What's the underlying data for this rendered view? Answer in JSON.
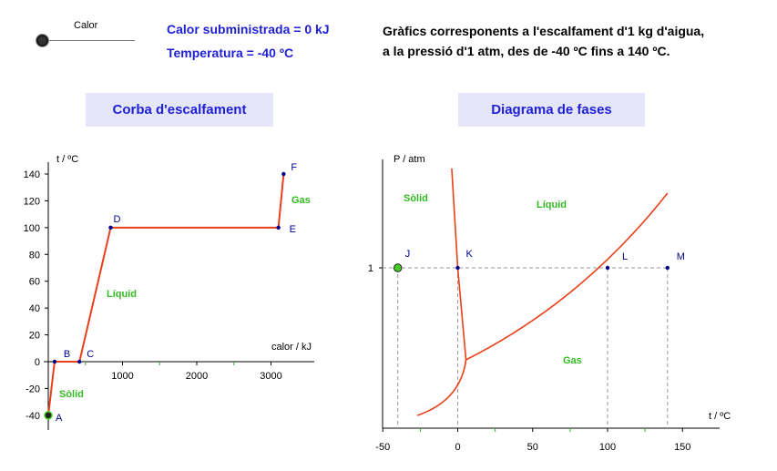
{
  "slider": {
    "label": "Calor"
  },
  "status": {
    "heat_text": "Calor subministrada = 0 kJ",
    "temp_text": "Temperatura = -40 ºC"
  },
  "description": {
    "line1": "Gràfics corresponents a l'escalfament d'1 kg d'aigua,",
    "line2": "a la pressió d'1 atm, des de -40 ºC fins a 140 ºC."
  },
  "buttons": {
    "heating_curve": "Corba d'escalfament",
    "phase_diagram": "Diagrama de fases"
  },
  "colors": {
    "curve": "#e8401a",
    "point": "#00008b",
    "region_label": "#33bb22",
    "title_text": "#1f1fd6",
    "title_bg": "#e6e6fa",
    "dashed": "#999999",
    "current_point": "#44cc22"
  },
  "chart_data": [
    {
      "type": "line",
      "title": "Corba d'escalfament",
      "xlabel": "calor / kJ",
      "ylabel": "t / ºC",
      "xlim": [
        -10,
        3350
      ],
      "ylim": [
        -52,
        148
      ],
      "x_ticks": [
        "1000",
        "2000",
        "3000"
      ],
      "y_ticks": [
        "-40",
        "-20",
        "0",
        "20",
        "40",
        "60",
        "80",
        "100",
        "120",
        "140"
      ],
      "series": [
        {
          "points": [
            {
              "label": "A",
              "x": 0,
              "y": -40
            },
            {
              "label": "B",
              "x": 85,
              "y": 0
            },
            {
              "label": "C",
              "x": 420,
              "y": 0
            },
            {
              "label": "D",
              "x": 840,
              "y": 100
            },
            {
              "label": "E",
              "x": 3100,
              "y": 100
            },
            {
              "label": "F",
              "x": 3170,
              "y": 140
            }
          ]
        }
      ],
      "region_labels": [
        "Sòlid",
        "Líquid",
        "Gas"
      ],
      "current_point": {
        "x": 0,
        "y": -40
      }
    },
    {
      "type": "line",
      "title": "Diagrama de fases",
      "xlabel": "t / ºC",
      "ylabel": "P / atm",
      "xlim": [
        -50,
        175
      ],
      "x_ticks": [
        "-50",
        "0",
        "50",
        "100",
        "150"
      ],
      "y_ticks": [
        "1"
      ],
      "named_points": [
        {
          "label": "J",
          "t": -40,
          "p": 1
        },
        {
          "label": "K",
          "t": 0,
          "p": 1
        },
        {
          "label": "L",
          "t": 100,
          "p": 1
        },
        {
          "label": "M",
          "t": 140,
          "p": 1
        }
      ],
      "region_labels": [
        "Sòlid",
        "Líquid",
        "Gas"
      ],
      "current_point": {
        "t": -40,
        "p": 1
      }
    }
  ]
}
